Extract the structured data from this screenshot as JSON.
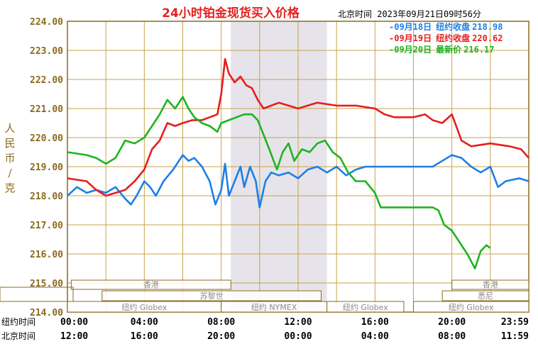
{
  "chart_data": {
    "type": "line",
    "title": "24小时铂金现货买入价格",
    "header_time": "北京时间  2023年09月21日09时56分",
    "ylabel": "人民币/克",
    "yticks": [
      "224.00",
      "223.00",
      "222.00",
      "221.00",
      "220.00",
      "219.00",
      "218.00",
      "217.00",
      "216.00",
      "215.00",
      "214.00"
    ],
    "ylim": [
      214,
      224
    ],
    "xlim_hours": [
      0,
      24
    ],
    "ny_time_label": "纽约时间",
    "bj_time_label": "北京时间",
    "ny_ticks": [
      "00:00",
      "04:00",
      "08:00",
      "12:00",
      "16:00",
      "20:00",
      "23:59"
    ],
    "bj_ticks": [
      "12:00",
      "16:00",
      "20:00",
      "00:00",
      "04:00",
      "08:00",
      "11:59"
    ],
    "sessions": {
      "hongkong": "香港",
      "paris": "苏黎世",
      "globex": "纽约 Globex",
      "nymex": "纽约 NYMEX",
      "sydney": "悉尼"
    },
    "series": [
      {
        "name": "09月18日",
        "legend_label": "纽约收盘",
        "legend_value": "218.98",
        "color": "#1e7fe6",
        "points": [
          [
            0,
            218.0
          ],
          [
            0.5,
            218.3
          ],
          [
            1,
            218.1
          ],
          [
            1.5,
            218.2
          ],
          [
            2,
            218.1
          ],
          [
            2.5,
            218.3
          ],
          [
            3,
            217.9
          ],
          [
            3.3,
            217.7
          ],
          [
            3.6,
            218.0
          ],
          [
            4,
            218.5
          ],
          [
            4.3,
            218.3
          ],
          [
            4.6,
            218.0
          ],
          [
            5,
            218.5
          ],
          [
            5.5,
            218.9
          ],
          [
            6,
            219.4
          ],
          [
            6.3,
            219.2
          ],
          [
            6.6,
            219.3
          ],
          [
            7,
            219.0
          ],
          [
            7.4,
            218.5
          ],
          [
            7.7,
            217.7
          ],
          [
            8,
            218.2
          ],
          [
            8.2,
            219.1
          ],
          [
            8.4,
            218.0
          ],
          [
            8.7,
            218.5
          ],
          [
            9.0,
            219.0
          ],
          [
            9.2,
            218.3
          ],
          [
            9.5,
            219.0
          ],
          [
            9.8,
            218.5
          ],
          [
            10.0,
            217.6
          ],
          [
            10.3,
            218.5
          ],
          [
            10.6,
            218.8
          ],
          [
            11,
            218.7
          ],
          [
            11.5,
            218.8
          ],
          [
            12,
            218.6
          ],
          [
            12.5,
            218.9
          ],
          [
            13,
            219.0
          ],
          [
            13.5,
            218.8
          ],
          [
            14,
            219.0
          ],
          [
            14.5,
            218.7
          ],
          [
            15,
            218.9
          ],
          [
            15.5,
            219.0
          ],
          [
            16,
            219.0
          ],
          [
            17,
            219.0
          ],
          [
            18,
            219.0
          ],
          [
            19,
            219.0
          ],
          [
            19.5,
            219.2
          ],
          [
            20,
            219.4
          ],
          [
            20.5,
            219.3
          ],
          [
            21,
            219.0
          ],
          [
            21.5,
            218.8
          ],
          [
            22,
            219.0
          ],
          [
            22.4,
            218.3
          ],
          [
            22.8,
            218.5
          ],
          [
            23.5,
            218.6
          ],
          [
            24,
            218.5
          ]
        ]
      },
      {
        "name": "09月19日",
        "legend_label": "纽约收盘",
        "legend_value": "220.62",
        "color": "#e61e1e",
        "points": [
          [
            0,
            218.6
          ],
          [
            1,
            218.5
          ],
          [
            1.5,
            218.2
          ],
          [
            2,
            218.0
          ],
          [
            2.5,
            218.1
          ],
          [
            3,
            218.2
          ],
          [
            3.5,
            218.5
          ],
          [
            4,
            218.9
          ],
          [
            4.4,
            219.6
          ],
          [
            4.8,
            219.9
          ],
          [
            5.2,
            220.5
          ],
          [
            5.6,
            220.4
          ],
          [
            6,
            220.5
          ],
          [
            6.5,
            220.6
          ],
          [
            7,
            220.6
          ],
          [
            7.4,
            220.7
          ],
          [
            7.8,
            220.8
          ],
          [
            8.0,
            221.5
          ],
          [
            8.2,
            222.7
          ],
          [
            8.4,
            222.2
          ],
          [
            8.7,
            221.9
          ],
          [
            9.0,
            222.1
          ],
          [
            9.3,
            221.8
          ],
          [
            9.6,
            221.7
          ],
          [
            9.9,
            221.3
          ],
          [
            10.2,
            221.0
          ],
          [
            10.6,
            221.1
          ],
          [
            11,
            221.2
          ],
          [
            11.5,
            221.1
          ],
          [
            12,
            221.0
          ],
          [
            12.5,
            221.1
          ],
          [
            13,
            221.2
          ],
          [
            14,
            221.1
          ],
          [
            15,
            221.1
          ],
          [
            16,
            221.0
          ],
          [
            16.5,
            220.8
          ],
          [
            17,
            220.7
          ],
          [
            18,
            220.7
          ],
          [
            18.6,
            220.8
          ],
          [
            19,
            220.6
          ],
          [
            19.5,
            220.5
          ],
          [
            20,
            220.8
          ],
          [
            20.5,
            219.9
          ],
          [
            21,
            219.7
          ],
          [
            22,
            219.8
          ],
          [
            23,
            219.7
          ],
          [
            23.6,
            219.6
          ],
          [
            24,
            219.3
          ]
        ]
      },
      {
        "name": "09月20日",
        "legend_label": "最新价",
        "legend_value": "216.17",
        "color": "#1eb41e",
        "points": [
          [
            0,
            219.5
          ],
          [
            1,
            219.4
          ],
          [
            1.5,
            219.3
          ],
          [
            2,
            219.1
          ],
          [
            2.5,
            219.3
          ],
          [
            3,
            219.9
          ],
          [
            3.5,
            219.8
          ],
          [
            4,
            220.0
          ],
          [
            4.4,
            220.4
          ],
          [
            4.8,
            220.8
          ],
          [
            5.2,
            221.3
          ],
          [
            5.6,
            221.0
          ],
          [
            6,
            221.4
          ],
          [
            6.3,
            221.0
          ],
          [
            6.6,
            220.7
          ],
          [
            7,
            220.5
          ],
          [
            7.4,
            220.4
          ],
          [
            7.8,
            220.2
          ],
          [
            8.0,
            220.5
          ],
          [
            8.4,
            220.6
          ],
          [
            8.8,
            220.7
          ],
          [
            9.2,
            220.8
          ],
          [
            9.6,
            220.8
          ],
          [
            9.9,
            220.6
          ],
          [
            10.2,
            220.1
          ],
          [
            10.5,
            219.6
          ],
          [
            10.9,
            218.9
          ],
          [
            11.2,
            219.5
          ],
          [
            11.5,
            219.8
          ],
          [
            11.8,
            219.2
          ],
          [
            12.2,
            219.6
          ],
          [
            12.6,
            219.5
          ],
          [
            13,
            219.8
          ],
          [
            13.4,
            219.9
          ],
          [
            13.8,
            219.5
          ],
          [
            14.2,
            219.3
          ],
          [
            14.6,
            218.8
          ],
          [
            15,
            218.5
          ],
          [
            15.5,
            218.5
          ],
          [
            16,
            218.1
          ],
          [
            16.3,
            217.6
          ],
          [
            17,
            217.6
          ],
          [
            18,
            217.6
          ],
          [
            19,
            217.6
          ],
          [
            19.3,
            217.5
          ],
          [
            19.6,
            217.0
          ],
          [
            20,
            216.8
          ],
          [
            20.4,
            216.4
          ],
          [
            20.8,
            216.0
          ],
          [
            21.2,
            215.5
          ],
          [
            21.5,
            216.1
          ],
          [
            21.8,
            216.3
          ],
          [
            22.0,
            216.2
          ]
        ]
      }
    ]
  }
}
